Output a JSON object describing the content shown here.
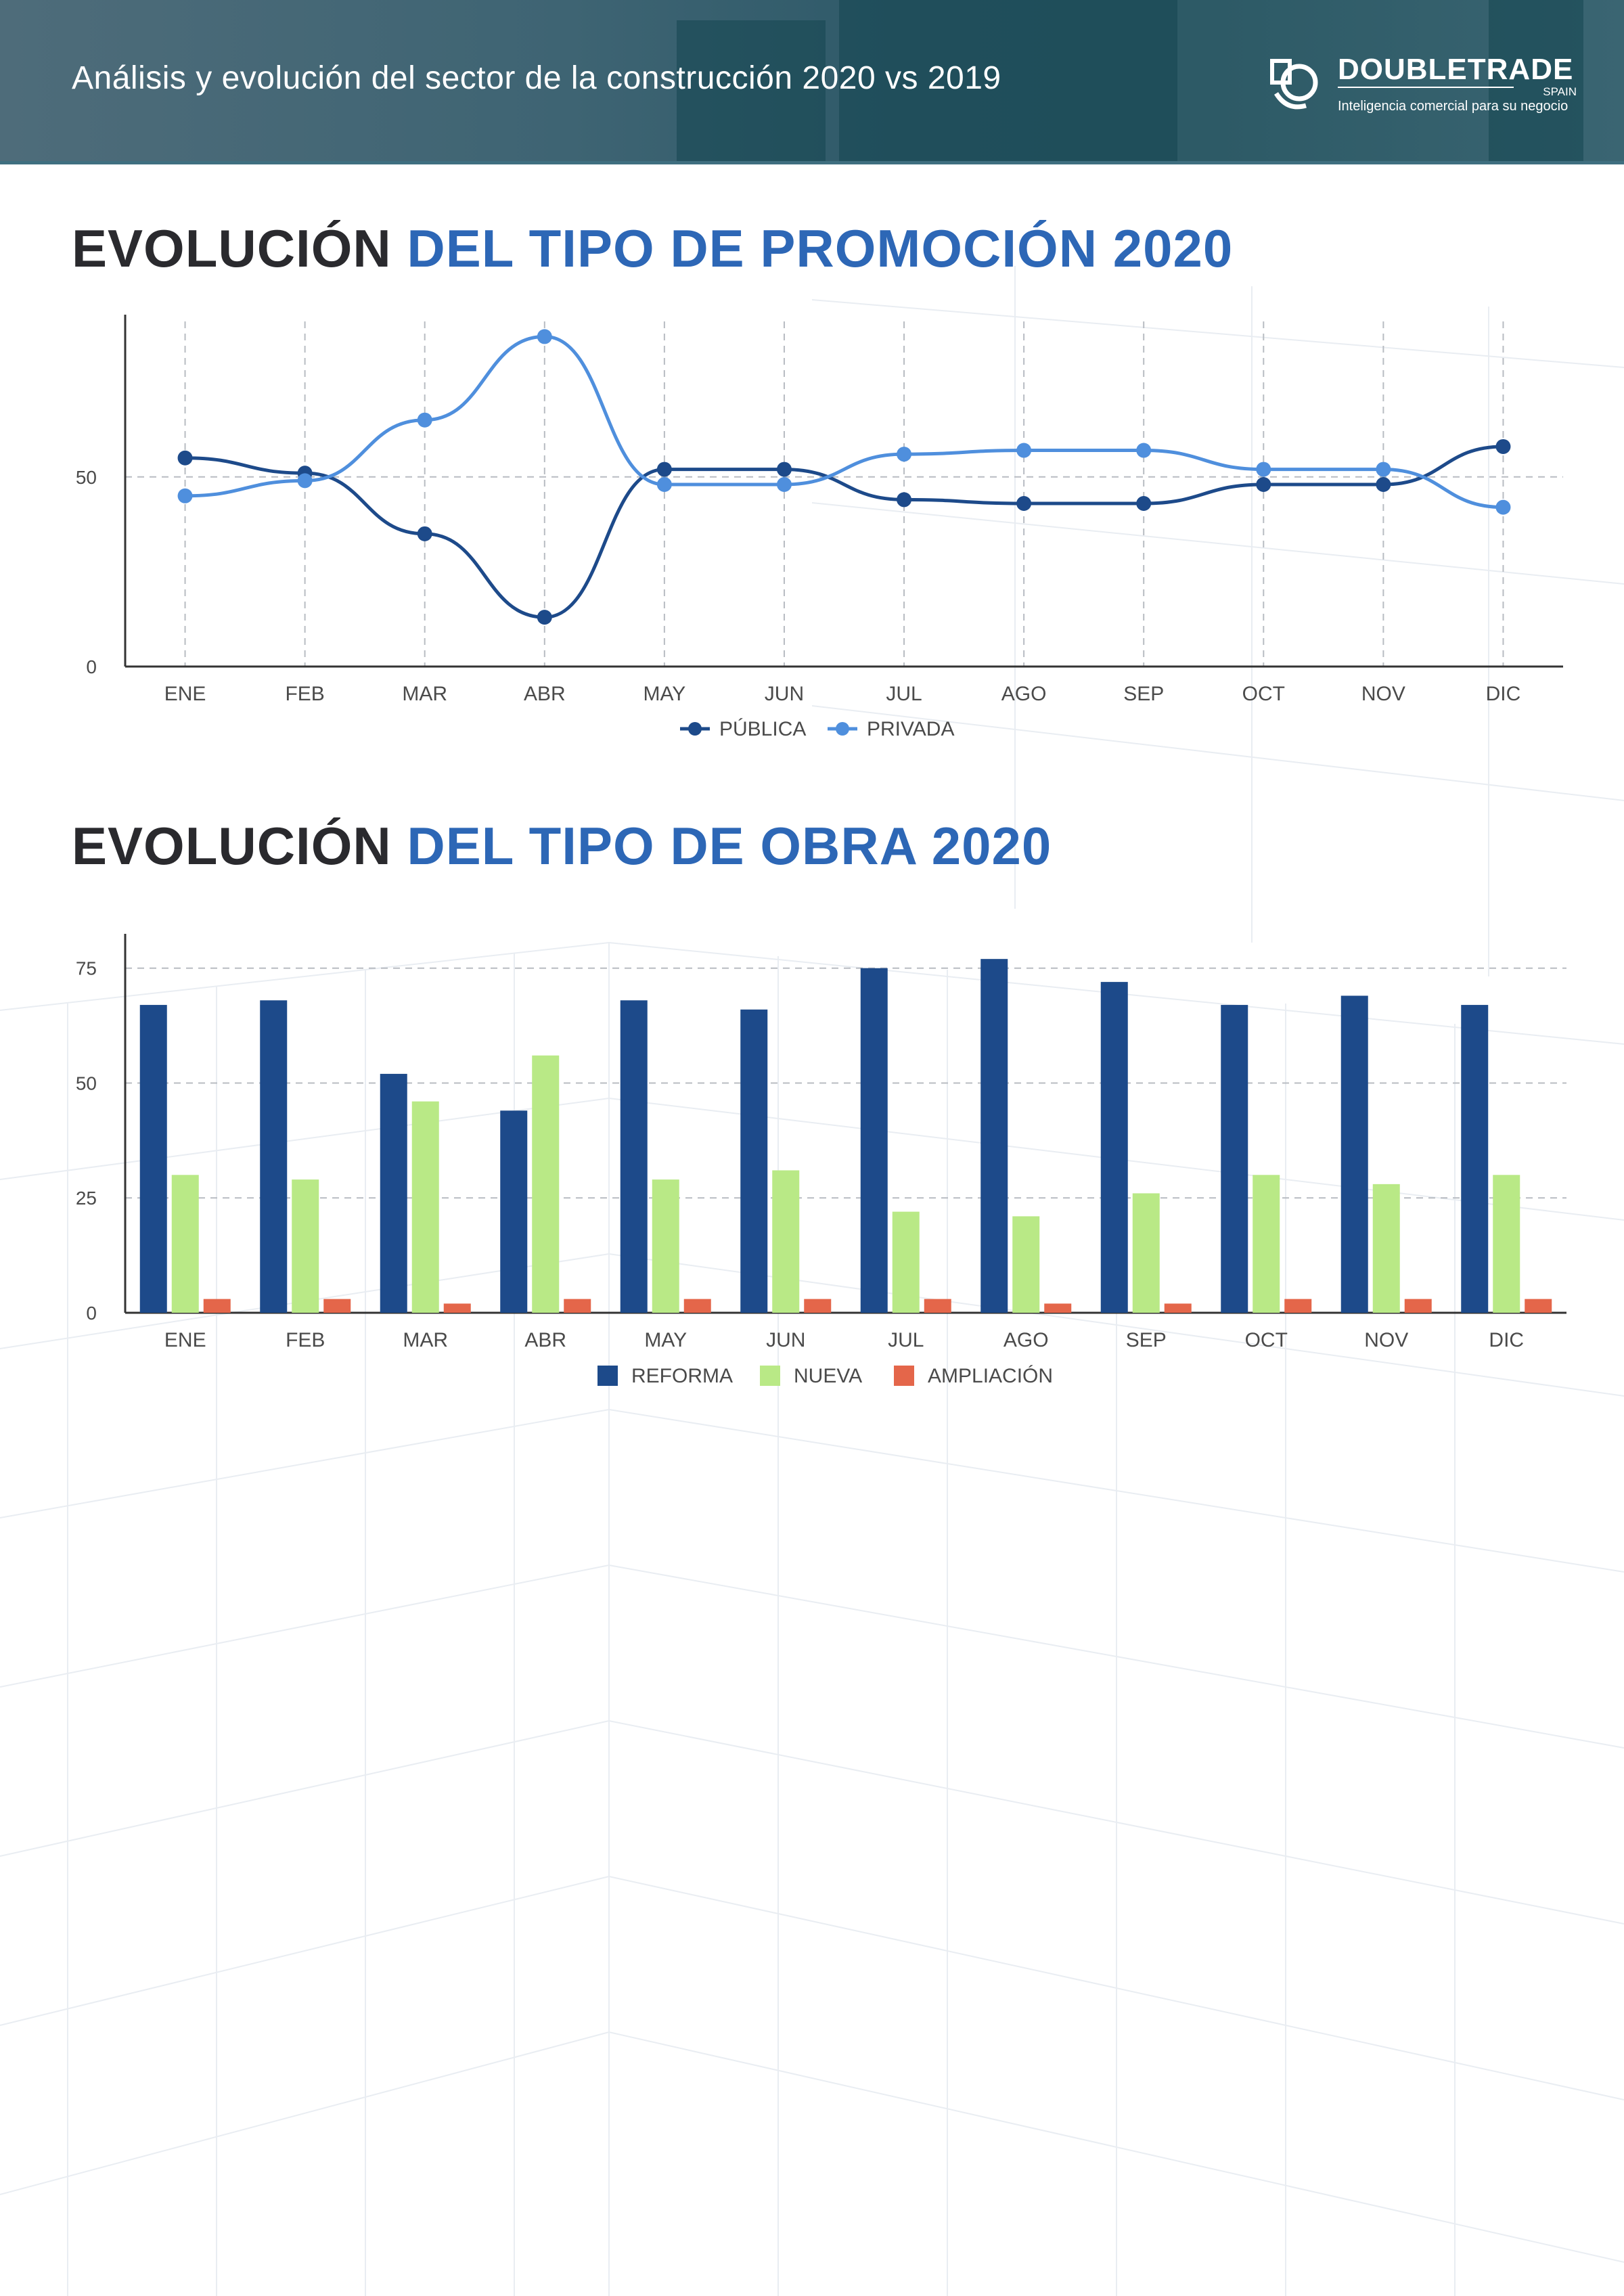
{
  "header": {
    "title": "Análisis y evolución del sector de la construcción 2020 vs 2019",
    "logo": {
      "name": "DOUBLETRADE",
      "country": "SPAIN",
      "tagline": "Inteligencia comercial para  su negocio"
    }
  },
  "colors": {
    "navy": "#1d4a8a",
    "light_blue": "#4f8fdd",
    "green": "#b9e986",
    "orange": "#e4664a",
    "title_dark": "#2a2a2e",
    "title_blue": "#2d67b6"
  },
  "section1": {
    "title_dark": "EVOLUCIÓN",
    "title_blue": "DEL TIPO DE PROMOCIÓN 2020"
  },
  "section2": {
    "title_dark": "EVOLUCIÓN",
    "title_blue": "DEL TIPO DE OBRA 2020"
  },
  "chart_data": [
    {
      "type": "line",
      "categories": [
        "ENE",
        "FEB",
        "MAR",
        "ABR",
        "MAY",
        "JUN",
        "JUL",
        "AGO",
        "SEP",
        "OCT",
        "NOV",
        "DIC"
      ],
      "series": [
        {
          "name": "PÚBLICA",
          "color": "#1d4a8a",
          "values": [
            55,
            51,
            35,
            13,
            52,
            52,
            44,
            43,
            43,
            48,
            48,
            58
          ]
        },
        {
          "name": "PRIVADA",
          "color": "#4f8fdd",
          "values": [
            45,
            49,
            65,
            87,
            48,
            48,
            56,
            57,
            57,
            52,
            52,
            42
          ]
        }
      ],
      "yticks": [
        0,
        50
      ],
      "ylim": [
        0,
        91
      ],
      "grid": true,
      "legend": "bottom"
    },
    {
      "type": "bar",
      "categories": [
        "ENE",
        "FEB",
        "MAR",
        "ABR",
        "MAY",
        "JUN",
        "JUL",
        "AGO",
        "SEP",
        "OCT",
        "NOV",
        "DIC"
      ],
      "series": [
        {
          "name": "REFORMA",
          "color": "#1d4a8a",
          "values": [
            67,
            68,
            52,
            44,
            68,
            66,
            75,
            77,
            72,
            67,
            69,
            67
          ]
        },
        {
          "name": "NUEVA",
          "color": "#b9e986",
          "values": [
            30,
            29,
            46,
            56,
            29,
            31,
            22,
            21,
            26,
            30,
            28,
            30
          ]
        },
        {
          "name": "AMPLIACIÓN",
          "color": "#e4664a",
          "values": [
            3,
            3,
            2,
            3,
            3,
            3,
            3,
            2,
            2,
            3,
            3,
            3
          ]
        }
      ],
      "yticks": [
        0,
        25,
        50,
        75
      ],
      "ylim": [
        0,
        81
      ],
      "grid": true,
      "legend": "bottom"
    }
  ]
}
